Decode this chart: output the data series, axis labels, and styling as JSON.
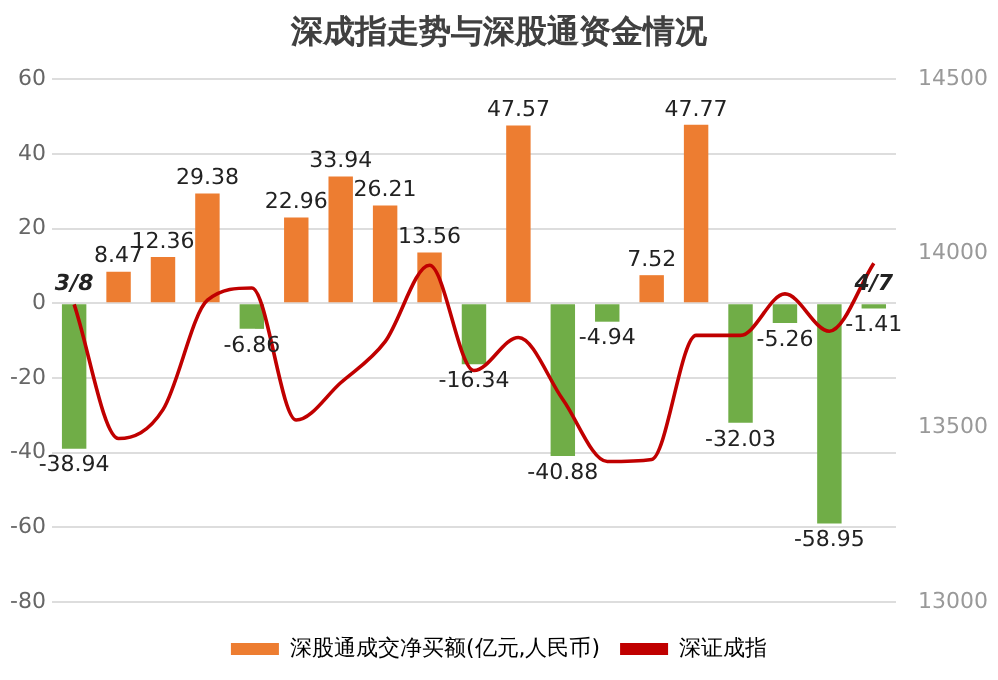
{
  "chart_data": {
    "type": "bar",
    "title": "深成指走势与深股通资金情况",
    "categories": [
      "3/8",
      null,
      null,
      null,
      null,
      null,
      null,
      null,
      null,
      null,
      null,
      null,
      null,
      null,
      null,
      null,
      null,
      null,
      "4/7"
    ],
    "series": [
      {
        "name": "深股通成交净买额(亿元,人民币)",
        "value_labels": [
          "-38.94",
          "8.47",
          "12.36",
          "29.38",
          "-6.86",
          "22.96",
          "33.94",
          "26.21",
          "13.56",
          "-16.34",
          "47.57",
          "-40.88",
          "-4.94",
          "7.52",
          "47.77",
          "-32.03",
          "-5.26",
          "-58.95",
          "-1.41"
        ],
        "color": "#ed7d31",
        "colors": [
          "#70ad47",
          "#ed7d31",
          "#ed7d31",
          "#ed7d31",
          "#70ad47",
          "#ed7d31",
          "#ed7d31",
          "#ed7d31",
          "#ed7d31",
          "#70ad47",
          "#ed7d31",
          "#70ad47",
          "#70ad47",
          "#ed7d31",
          "#ed7d31",
          "#70ad47",
          "#70ad47",
          "#70ad47",
          "#70ad47"
        ],
        "values": [
          -38.94,
          8.47,
          12.36,
          29.38,
          -6.86,
          22.96,
          33.94,
          26.21,
          13.56,
          -16.34,
          47.57,
          -40.88,
          -4.94,
          7.52,
          47.77,
          -32.03,
          -5.26,
          -58.95,
          -1.41
        ]
      },
      {
        "name": "深证成指",
        "type": "line",
        "axis": "y2",
        "color": "#c00000",
        "values": [
          13854,
          13469,
          13552,
          13866,
          13901,
          13522,
          13629,
          13747,
          13966,
          13664,
          13759,
          13581,
          13403,
          13409,
          13765,
          13765,
          13884,
          13777,
          13972
        ]
      }
    ],
    "ylim": [
      -80,
      60
    ],
    "yticks": [
      -80,
      -60,
      -40,
      -20,
      0,
      20,
      40,
      60
    ],
    "y2lim": [
      13000,
      14500
    ],
    "y2ticks": [
      13000,
      13500,
      14000,
      14500
    ],
    "grid": "y",
    "legend": "bottom",
    "marker": "none"
  }
}
